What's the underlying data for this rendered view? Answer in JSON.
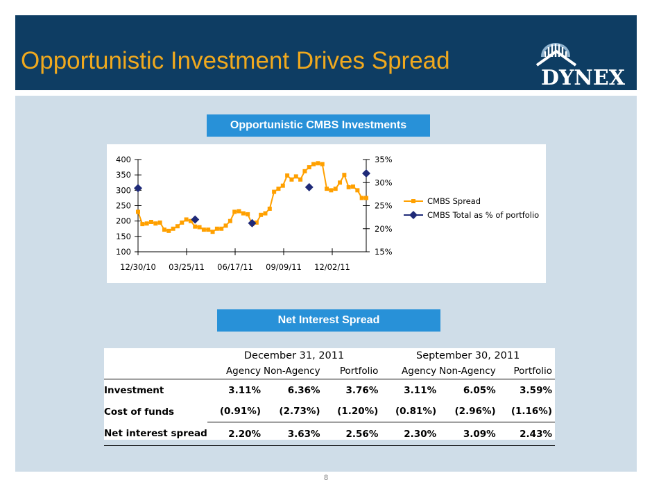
{
  "header": {
    "title": "Opportunistic Investment Drives Spread",
    "logo_text": "DYNEX",
    "bg_color": "#0e3d63",
    "title_color": "#f0a91e"
  },
  "banners": {
    "cmbs": "Opportunistic CMBS Investments",
    "nis": "Net Interest Spread"
  },
  "chart_data": {
    "type": "line",
    "x_tick_labels": [
      "12/30/10",
      "03/25/11",
      "06/17/11",
      "09/09/11",
      "12/02/11"
    ],
    "y_left": {
      "ticks": [
        100,
        150,
        200,
        250,
        300,
        350,
        400
      ],
      "ylim": [
        100,
        400
      ]
    },
    "y_right": {
      "ticks": [
        "15%",
        "20%",
        "25%",
        "30%",
        "35%"
      ],
      "ylim": [
        15,
        35
      ]
    },
    "legend_position": "right",
    "series": [
      {
        "name": "CMBS Spread",
        "axis": "left",
        "color": "#ffa000",
        "marker": "square",
        "values": [
          230,
          190,
          192,
          197,
          192,
          195,
          172,
          168,
          175,
          183,
          195,
          205,
          200,
          182,
          180,
          172,
          172,
          165,
          175,
          175,
          185,
          200,
          230,
          232,
          225,
          222,
          190,
          195,
          220,
          225,
          240,
          295,
          305,
          315,
          348,
          335,
          345,
          335,
          362,
          375,
          385,
          388,
          385,
          305,
          300,
          305,
          325,
          350,
          310,
          312,
          300,
          275,
          275
        ]
      },
      {
        "name": "CMBS Total as % of portfolio",
        "axis": "right",
        "color": "#1f2a78",
        "marker": "diamond",
        "points": [
          {
            "index": 0,
            "value": 28.8
          },
          {
            "index": 13,
            "value": 22.0
          },
          {
            "index": 26,
            "value": 21.2
          },
          {
            "index": 39,
            "value": 29.0
          },
          {
            "index": 52,
            "value": 32.0
          }
        ]
      }
    ]
  },
  "table": {
    "periods": [
      "December 31, 2011",
      "September 30, 2011"
    ],
    "columns": [
      "Agency",
      "Non-Agency",
      "Portfolio",
      "Agency",
      "Non-Agency",
      "Portfolio"
    ],
    "rows": [
      {
        "label": "Investment",
        "values": [
          "3.11%",
          "6.36%",
          "3.76%",
          "3.11%",
          "6.05%",
          "3.59%"
        ]
      },
      {
        "label": "Cost of funds",
        "values": [
          "(0.91%)",
          "(2.73%)",
          "(1.20%)",
          "(0.81%)",
          "(2.96%)",
          "(1.16%)"
        ]
      },
      {
        "label": "Net interest spread",
        "values": [
          "2.20%",
          "3.63%",
          "2.56%",
          "2.30%",
          "3.09%",
          "2.43%"
        ]
      }
    ]
  },
  "footer": {
    "page_number": "8"
  }
}
